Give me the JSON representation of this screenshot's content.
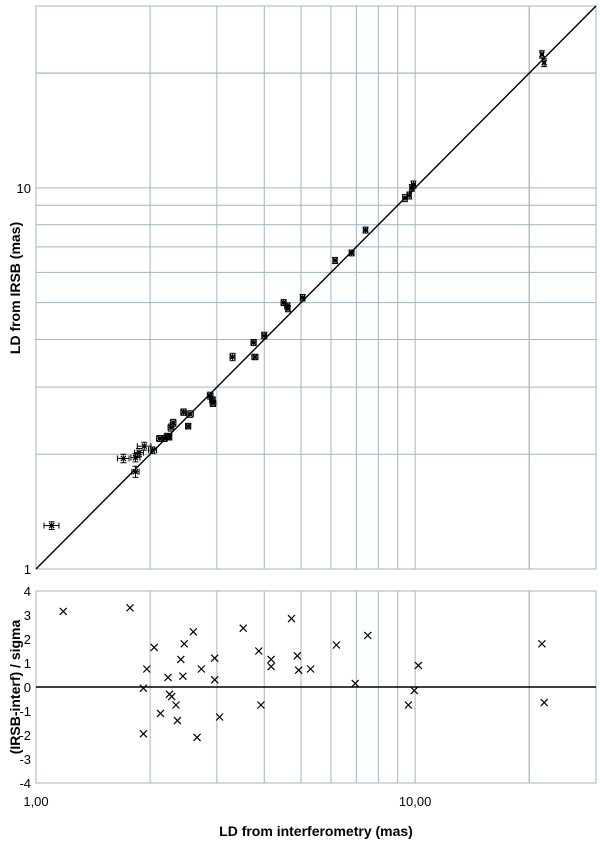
{
  "chart_data": [
    {
      "type": "scatter",
      "title": "",
      "xlabel": "",
      "ylabel": "LD from IRSB (mas)",
      "xscale": "log",
      "yscale": "log",
      "xlim": [
        1,
        30
      ],
      "ylim": [
        1,
        30
      ],
      "grid": true,
      "y_tick_labels": [
        "1",
        "10"
      ],
      "reference_line": "y = x",
      "series": [
        {
          "marker": "x",
          "error_bars": true,
          "points": [
            {
              "x": 1.1,
              "y": 1.3,
              "xerr": 0.05,
              "yerr": 0.03
            },
            {
              "x": 1.7,
              "y": 1.95,
              "xerr": 0.06,
              "yerr": 0.05
            },
            {
              "x": 1.83,
              "y": 1.96,
              "xerr": 0.05,
              "yerr": 0.05
            },
            {
              "x": 1.83,
              "y": 1.8,
              "xerr": 0.04,
              "yerr": 0.06
            },
            {
              "x": 1.87,
              "y": 2.02,
              "xerr": 0.05,
              "yerr": 0.05
            },
            {
              "x": 1.93,
              "y": 2.1,
              "xerr": 0.08,
              "yerr": 0.05
            },
            {
              "x": 2.03,
              "y": 2.05,
              "xerr": 0.05,
              "yerr": 0.04
            },
            {
              "x": 2.12,
              "y": 2.2,
              "xerr": 0.04,
              "yerr": 0.04
            },
            {
              "x": 2.18,
              "y": 2.2,
              "xerr": 0.04,
              "yerr": 0.04
            },
            {
              "x": 2.22,
              "y": 2.23,
              "xerr": 0.04,
              "yerr": 0.04
            },
            {
              "x": 2.25,
              "y": 2.22,
              "xerr": 0.03,
              "yerr": 0.04
            },
            {
              "x": 2.27,
              "y": 2.35,
              "xerr": 0.04,
              "yerr": 0.05
            },
            {
              "x": 2.3,
              "y": 2.42,
              "xerr": 0.04,
              "yerr": 0.05
            },
            {
              "x": 2.45,
              "y": 2.58,
              "xerr": 0.04,
              "yerr": 0.05
            },
            {
              "x": 2.55,
              "y": 2.55,
              "xerr": 0.05,
              "yerr": 0.05
            },
            {
              "x": 2.52,
              "y": 2.37,
              "xerr": 0.04,
              "yerr": 0.04
            },
            {
              "x": 2.88,
              "y": 2.85,
              "xerr": 0.05,
              "yerr": 0.06
            },
            {
              "x": 2.92,
              "y": 2.78,
              "xerr": 0.05,
              "yerr": 0.05
            },
            {
              "x": 2.93,
              "y": 2.72,
              "xerr": 0.05,
              "yerr": 0.05
            },
            {
              "x": 3.3,
              "y": 3.6,
              "xerr": 0.05,
              "yerr": 0.08
            },
            {
              "x": 3.75,
              "y": 3.93,
              "xerr": 0.06,
              "yerr": 0.07
            },
            {
              "x": 3.78,
              "y": 3.6,
              "xerr": 0.07,
              "yerr": 0.06
            },
            {
              "x": 4.0,
              "y": 4.1,
              "xerr": 0.06,
              "yerr": 0.08
            },
            {
              "x": 4.5,
              "y": 5.0,
              "xerr": 0.07,
              "yerr": 0.09
            },
            {
              "x": 4.6,
              "y": 4.9,
              "xerr": 0.07,
              "yerr": 0.09
            },
            {
              "x": 4.62,
              "y": 4.82,
              "xerr": 0.06,
              "yerr": 0.09
            },
            {
              "x": 5.05,
              "y": 5.15,
              "xerr": 0.07,
              "yerr": 0.1
            },
            {
              "x": 6.15,
              "y": 6.45,
              "xerr": 0.08,
              "yerr": 0.12
            },
            {
              "x": 6.8,
              "y": 6.75,
              "xerr": 0.1,
              "yerr": 0.12
            },
            {
              "x": 7.4,
              "y": 7.75,
              "xerr": 0.1,
              "yerr": 0.14
            },
            {
              "x": 9.4,
              "y": 9.4,
              "xerr": 0.13,
              "yerr": 0.2
            },
            {
              "x": 9.65,
              "y": 9.55,
              "xerr": 0.12,
              "yerr": 0.2
            },
            {
              "x": 9.8,
              "y": 10.0,
              "xerr": 0.12,
              "yerr": 0.2
            },
            {
              "x": 9.9,
              "y": 10.2,
              "xerr": 0.12,
              "yerr": 0.22
            },
            {
              "x": 21.6,
              "y": 22.4,
              "xerr": 0.2,
              "yerr": 0.5
            },
            {
              "x": 21.9,
              "y": 21.3,
              "xerr": 0.2,
              "yerr": 0.5
            }
          ]
        }
      ]
    },
    {
      "type": "scatter",
      "title": "",
      "xlabel": "LD from interferometry (mas)",
      "ylabel": "(IRSB-interf) / sigma",
      "xscale": "log",
      "xlim": [
        1,
        30
      ],
      "ylim": [
        -4,
        4
      ],
      "grid": true,
      "x_tick_labels": [
        "1,00",
        "10,00"
      ],
      "y_tick_labels": [
        "4",
        "3",
        "2",
        "1",
        "0",
        "-1",
        "-2",
        "-3",
        "-4"
      ],
      "reference_line": "y = 0",
      "series": [
        {
          "marker": "x",
          "points": [
            {
              "x": 1.18,
              "y": 3.15
            },
            {
              "x": 1.77,
              "y": 3.3
            },
            {
              "x": 1.92,
              "y": -0.05
            },
            {
              "x": 1.92,
              "y": -1.95
            },
            {
              "x": 1.96,
              "y": 0.75
            },
            {
              "x": 2.05,
              "y": 1.65
            },
            {
              "x": 2.13,
              "y": -1.1
            },
            {
              "x": 2.23,
              "y": 0.4
            },
            {
              "x": 2.25,
              "y": -0.3
            },
            {
              "x": 2.28,
              "y": -0.4
            },
            {
              "x": 2.34,
              "y": -0.75
            },
            {
              "x": 2.36,
              "y": -1.4
            },
            {
              "x": 2.41,
              "y": 1.15
            },
            {
              "x": 2.44,
              "y": 0.45
            },
            {
              "x": 2.46,
              "y": 1.8
            },
            {
              "x": 2.6,
              "y": 2.3
            },
            {
              "x": 2.66,
              "y": -2.1
            },
            {
              "x": 2.73,
              "y": 0.75
            },
            {
              "x": 2.96,
              "y": 1.2
            },
            {
              "x": 2.96,
              "y": 0.3
            },
            {
              "x": 3.05,
              "y": -1.25
            },
            {
              "x": 3.52,
              "y": 2.45
            },
            {
              "x": 3.87,
              "y": 1.5
            },
            {
              "x": 3.92,
              "y": -0.75
            },
            {
              "x": 4.17,
              "y": 1.15
            },
            {
              "x": 4.17,
              "y": 0.85
            },
            {
              "x": 4.72,
              "y": 2.85
            },
            {
              "x": 4.89,
              "y": 1.3
            },
            {
              "x": 4.93,
              "y": 0.7
            },
            {
              "x": 5.3,
              "y": 0.75
            },
            {
              "x": 6.2,
              "y": 1.75
            },
            {
              "x": 6.95,
              "y": 0.15
            },
            {
              "x": 7.5,
              "y": 2.15
            },
            {
              "x": 9.6,
              "y": -0.75
            },
            {
              "x": 9.95,
              "y": -0.15
            },
            {
              "x": 10.2,
              "y": 0.9
            },
            {
              "x": 21.6,
              "y": 1.8
            },
            {
              "x": 21.9,
              "y": -0.65
            }
          ]
        }
      ]
    }
  ]
}
